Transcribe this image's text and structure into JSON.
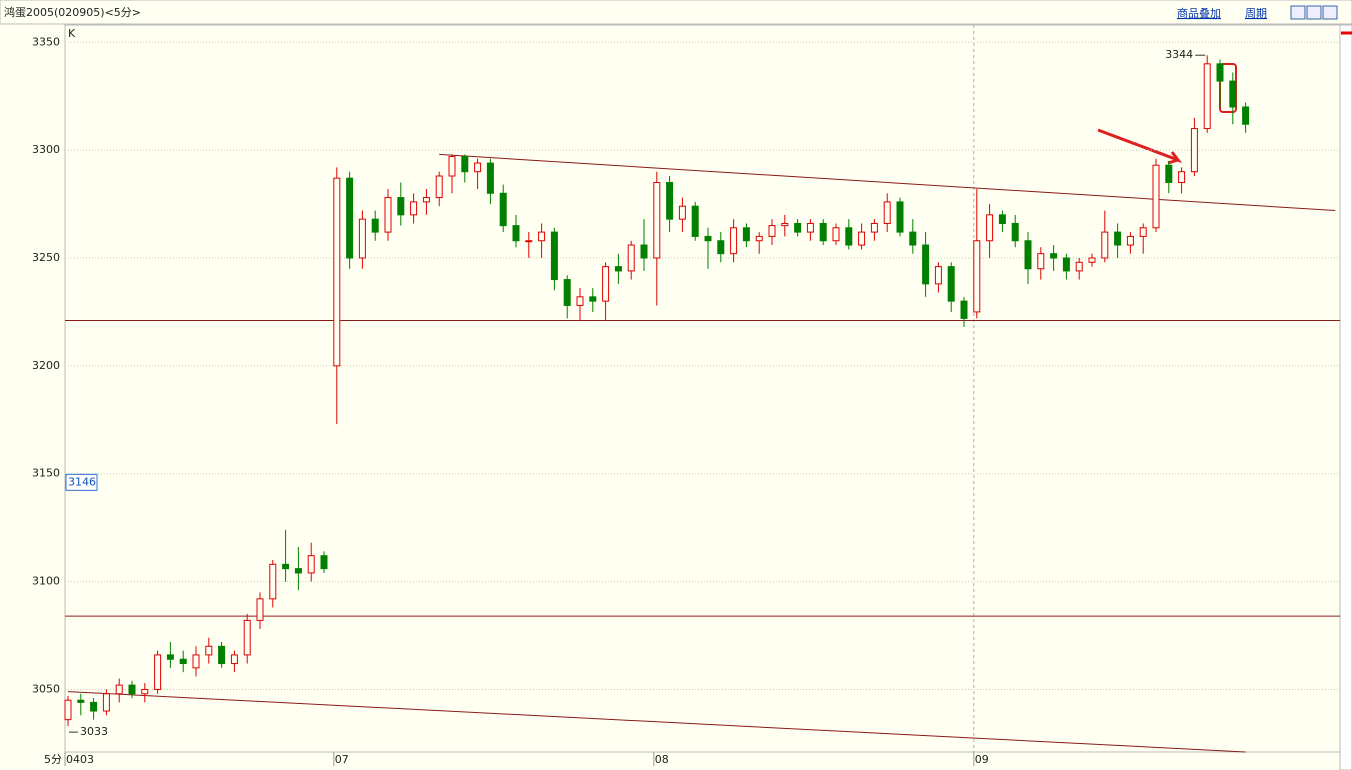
{
  "chart_data": {
    "type": "candlestick",
    "title": "鸿蛋2005(020905)<5分>",
    "toolbar": [
      "商品叠加",
      "周期"
    ],
    "panel_label": "K",
    "period_label": "5分",
    "ylim": [
      3021,
      3358
    ],
    "yticks": [
      3050,
      3100,
      3150,
      3200,
      3250,
      3300,
      3350
    ],
    "grid": true,
    "up_color": "#e00000",
    "down_color": "#008000",
    "categories": [
      "0403",
      null,
      null,
      null,
      null,
      null,
      null,
      null,
      null,
      null,
      null,
      null,
      null,
      null,
      null,
      null,
      null,
      null,
      null,
      null,
      null,
      "07",
      null,
      null,
      null,
      null,
      null,
      null,
      null,
      null,
      null,
      null,
      null,
      null,
      null,
      null,
      null,
      null,
      null,
      null,
      null,
      null,
      null,
      null,
      null,
      null,
      "08",
      null,
      null,
      null,
      null,
      null,
      null,
      null,
      null,
      null,
      null,
      null,
      null,
      null,
      null,
      null,
      null,
      null,
      null,
      null,
      null,
      null,
      null,
      null,
      null,
      "09",
      null,
      null,
      null,
      null,
      null,
      null,
      null,
      null,
      null,
      null,
      null,
      null,
      null,
      null,
      null,
      null,
      null,
      null,
      null,
      null,
      null
    ],
    "ohlc": [
      [
        3036,
        3047,
        3033,
        3045
      ],
      [
        3045,
        3048,
        3038,
        3044
      ],
      [
        3044,
        3046,
        3036,
        3040
      ],
      [
        3040,
        3050,
        3038,
        3048
      ],
      [
        3048,
        3055,
        3044,
        3052
      ],
      [
        3052,
        3054,
        3046,
        3048
      ],
      [
        3048,
        3053,
        3044,
        3050
      ],
      [
        3050,
        3068,
        3048,
        3066
      ],
      [
        3066,
        3072,
        3060,
        3064
      ],
      [
        3064,
        3068,
        3058,
        3062
      ],
      [
        3060,
        3070,
        3056,
        3066
      ],
      [
        3066,
        3074,
        3062,
        3070
      ],
      [
        3070,
        3072,
        3060,
        3062
      ],
      [
        3062,
        3068,
        3058,
        3066
      ],
      [
        3066,
        3085,
        3062,
        3082
      ],
      [
        3082,
        3095,
        3078,
        3092
      ],
      [
        3092,
        3110,
        3088,
        3108
      ],
      [
        3108,
        3124,
        3100,
        3106
      ],
      [
        3106,
        3116,
        3096,
        3104
      ],
      [
        3104,
        3118,
        3100,
        3112
      ],
      [
        3112,
        3114,
        3104,
        3106
      ],
      [
        3200,
        3292,
        3173,
        3287
      ],
      [
        3287,
        3290,
        3245,
        3250
      ],
      [
        3250,
        3272,
        3245,
        3268
      ],
      [
        3268,
        3272,
        3258,
        3262
      ],
      [
        3262,
        3282,
        3258,
        3278
      ],
      [
        3278,
        3285,
        3265,
        3270
      ],
      [
        3270,
        3280,
        3266,
        3276
      ],
      [
        3276,
        3282,
        3270,
        3278
      ],
      [
        3278,
        3290,
        3274,
        3288
      ],
      [
        3288,
        3298,
        3280,
        3297
      ],
      [
        3297,
        3298,
        3285,
        3290
      ],
      [
        3290,
        3296,
        3282,
        3294
      ],
      [
        3294,
        3296,
        3275,
        3280
      ],
      [
        3280,
        3284,
        3262,
        3265
      ],
      [
        3265,
        3270,
        3255,
        3258
      ],
      [
        3258,
        3262,
        3250,
        3258
      ],
      [
        3258,
        3266,
        3250,
        3262
      ],
      [
        3262,
        3264,
        3235,
        3240
      ],
      [
        3240,
        3242,
        3222,
        3228
      ],
      [
        3228,
        3236,
        3221,
        3232
      ],
      [
        3232,
        3236,
        3225,
        3230
      ],
      [
        3230,
        3248,
        3221,
        3246
      ],
      [
        3246,
        3252,
        3238,
        3244
      ],
      [
        3244,
        3258,
        3240,
        3256
      ],
      [
        3256,
        3268,
        3244,
        3250
      ],
      [
        3250,
        3290,
        3228,
        3285
      ],
      [
        3285,
        3288,
        3262,
        3268
      ],
      [
        3268,
        3278,
        3262,
        3274
      ],
      [
        3274,
        3276,
        3258,
        3260
      ],
      [
        3260,
        3264,
        3245,
        3258
      ],
      [
        3258,
        3262,
        3248,
        3252
      ],
      [
        3252,
        3268,
        3248,
        3264
      ],
      [
        3264,
        3266,
        3255,
        3258
      ],
      [
        3258,
        3262,
        3252,
        3260
      ],
      [
        3260,
        3268,
        3256,
        3265
      ],
      [
        3265,
        3270,
        3260,
        3266
      ],
      [
        3266,
        3268,
        3260,
        3262
      ],
      [
        3262,
        3268,
        3258,
        3266
      ],
      [
        3266,
        3268,
        3256,
        3258
      ],
      [
        3258,
        3266,
        3256,
        3264
      ],
      [
        3264,
        3268,
        3254,
        3256
      ],
      [
        3256,
        3266,
        3254,
        3262
      ],
      [
        3262,
        3268,
        3258,
        3266
      ],
      [
        3266,
        3280,
        3262,
        3276
      ],
      [
        3276,
        3278,
        3260,
        3262
      ],
      [
        3262,
        3268,
        3252,
        3256
      ],
      [
        3256,
        3262,
        3232,
        3238
      ],
      [
        3238,
        3248,
        3234,
        3246
      ],
      [
        3246,
        3248,
        3225,
        3230
      ],
      [
        3230,
        3232,
        3218,
        3222
      ],
      [
        3225,
        3282,
        3222,
        3258
      ],
      [
        3258,
        3275,
        3250,
        3270
      ],
      [
        3270,
        3272,
        3262,
        3266
      ],
      [
        3266,
        3270,
        3255,
        3258
      ],
      [
        3258,
        3262,
        3238,
        3245
      ],
      [
        3245,
        3255,
        3240,
        3252
      ],
      [
        3252,
        3256,
        3244,
        3250
      ],
      [
        3250,
        3252,
        3240,
        3244
      ],
      [
        3244,
        3250,
        3240,
        3248
      ],
      [
        3248,
        3252,
        3246,
        3250
      ],
      [
        3250,
        3272,
        3248,
        3262
      ],
      [
        3262,
        3266,
        3250,
        3256
      ],
      [
        3256,
        3262,
        3252,
        3260
      ],
      [
        3260,
        3266,
        3252,
        3264
      ],
      [
        3264,
        3296,
        3262,
        3293
      ],
      [
        3293,
        3295,
        3280,
        3285
      ],
      [
        3285,
        3292,
        3280,
        3290
      ],
      [
        3290,
        3315,
        3288,
        3310
      ],
      [
        3310,
        3344,
        3308,
        3340
      ],
      [
        3340,
        3342,
        3320,
        3332
      ],
      [
        3332,
        3336,
        3312,
        3320
      ],
      [
        3320,
        3322,
        3308,
        3312
      ]
    ],
    "high_label": {
      "index": 89,
      "value": 3344
    },
    "low_label": {
      "index": 0,
      "value": 3033
    },
    "cursor": 3146,
    "hlines": [
      3221,
      3084
    ],
    "trendlines": [
      {
        "x": [
          29,
          99
        ],
        "y": [
          3298,
          3272
        ]
      },
      {
        "x": [
          0,
          92
        ],
        "y": [
          3049,
          3021
        ]
      }
    ],
    "line_color": "#8b1a1a"
  }
}
